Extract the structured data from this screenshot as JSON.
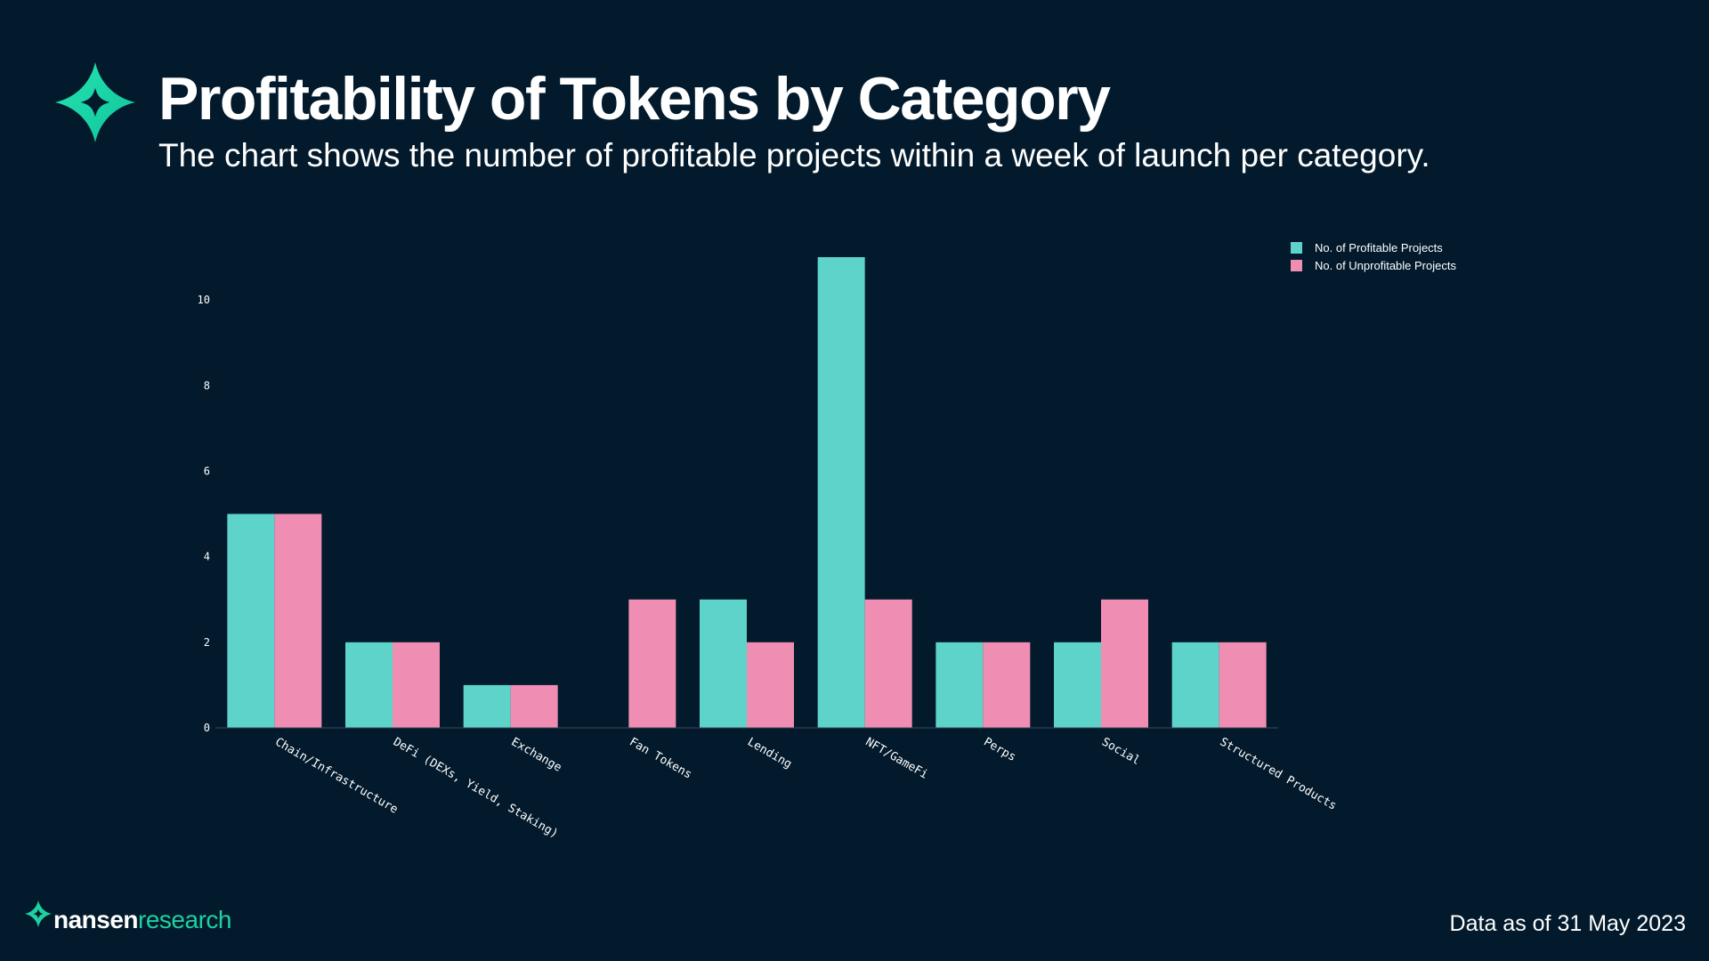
{
  "header": {
    "title": "Profitability of Tokens by Category",
    "subtitle": "The chart shows the number of profitable projects within a week of launch per category.",
    "logo_icon": "nansen-star-icon"
  },
  "footer": {
    "brand_name": "nansen",
    "brand_suffix": "research",
    "data_note": "Data as of 31 May 2023"
  },
  "colors": {
    "background": "#021a2c",
    "profitable": "#5dd3c9",
    "unprofitable": "#f08db3",
    "brand_green": "#1dd1a1",
    "axis": "#3a4a5a"
  },
  "chart_data": {
    "type": "bar",
    "title": "Profitability of Tokens by Category",
    "xlabel": "",
    "ylabel": "",
    "ylim": [
      0,
      11
    ],
    "yticks": [
      0,
      2,
      4,
      6,
      8,
      10
    ],
    "grid": false,
    "legend_position": "top-right",
    "categories": [
      "Chain/Infrastructure",
      "DeFi (DEXs, Yield, Staking)",
      "Exchange",
      "Fan Tokens",
      "Lending",
      "NFT/GameFi",
      "Perps",
      "Social",
      "Structured Products"
    ],
    "series": [
      {
        "name": "No. of Profitable Projects",
        "values": [
          5,
          2,
          1,
          0,
          3,
          11,
          2,
          2,
          2
        ]
      },
      {
        "name": "No. of Unprofitable Projects",
        "values": [
          5,
          2,
          1,
          3,
          2,
          3,
          2,
          3,
          2
        ]
      }
    ]
  }
}
